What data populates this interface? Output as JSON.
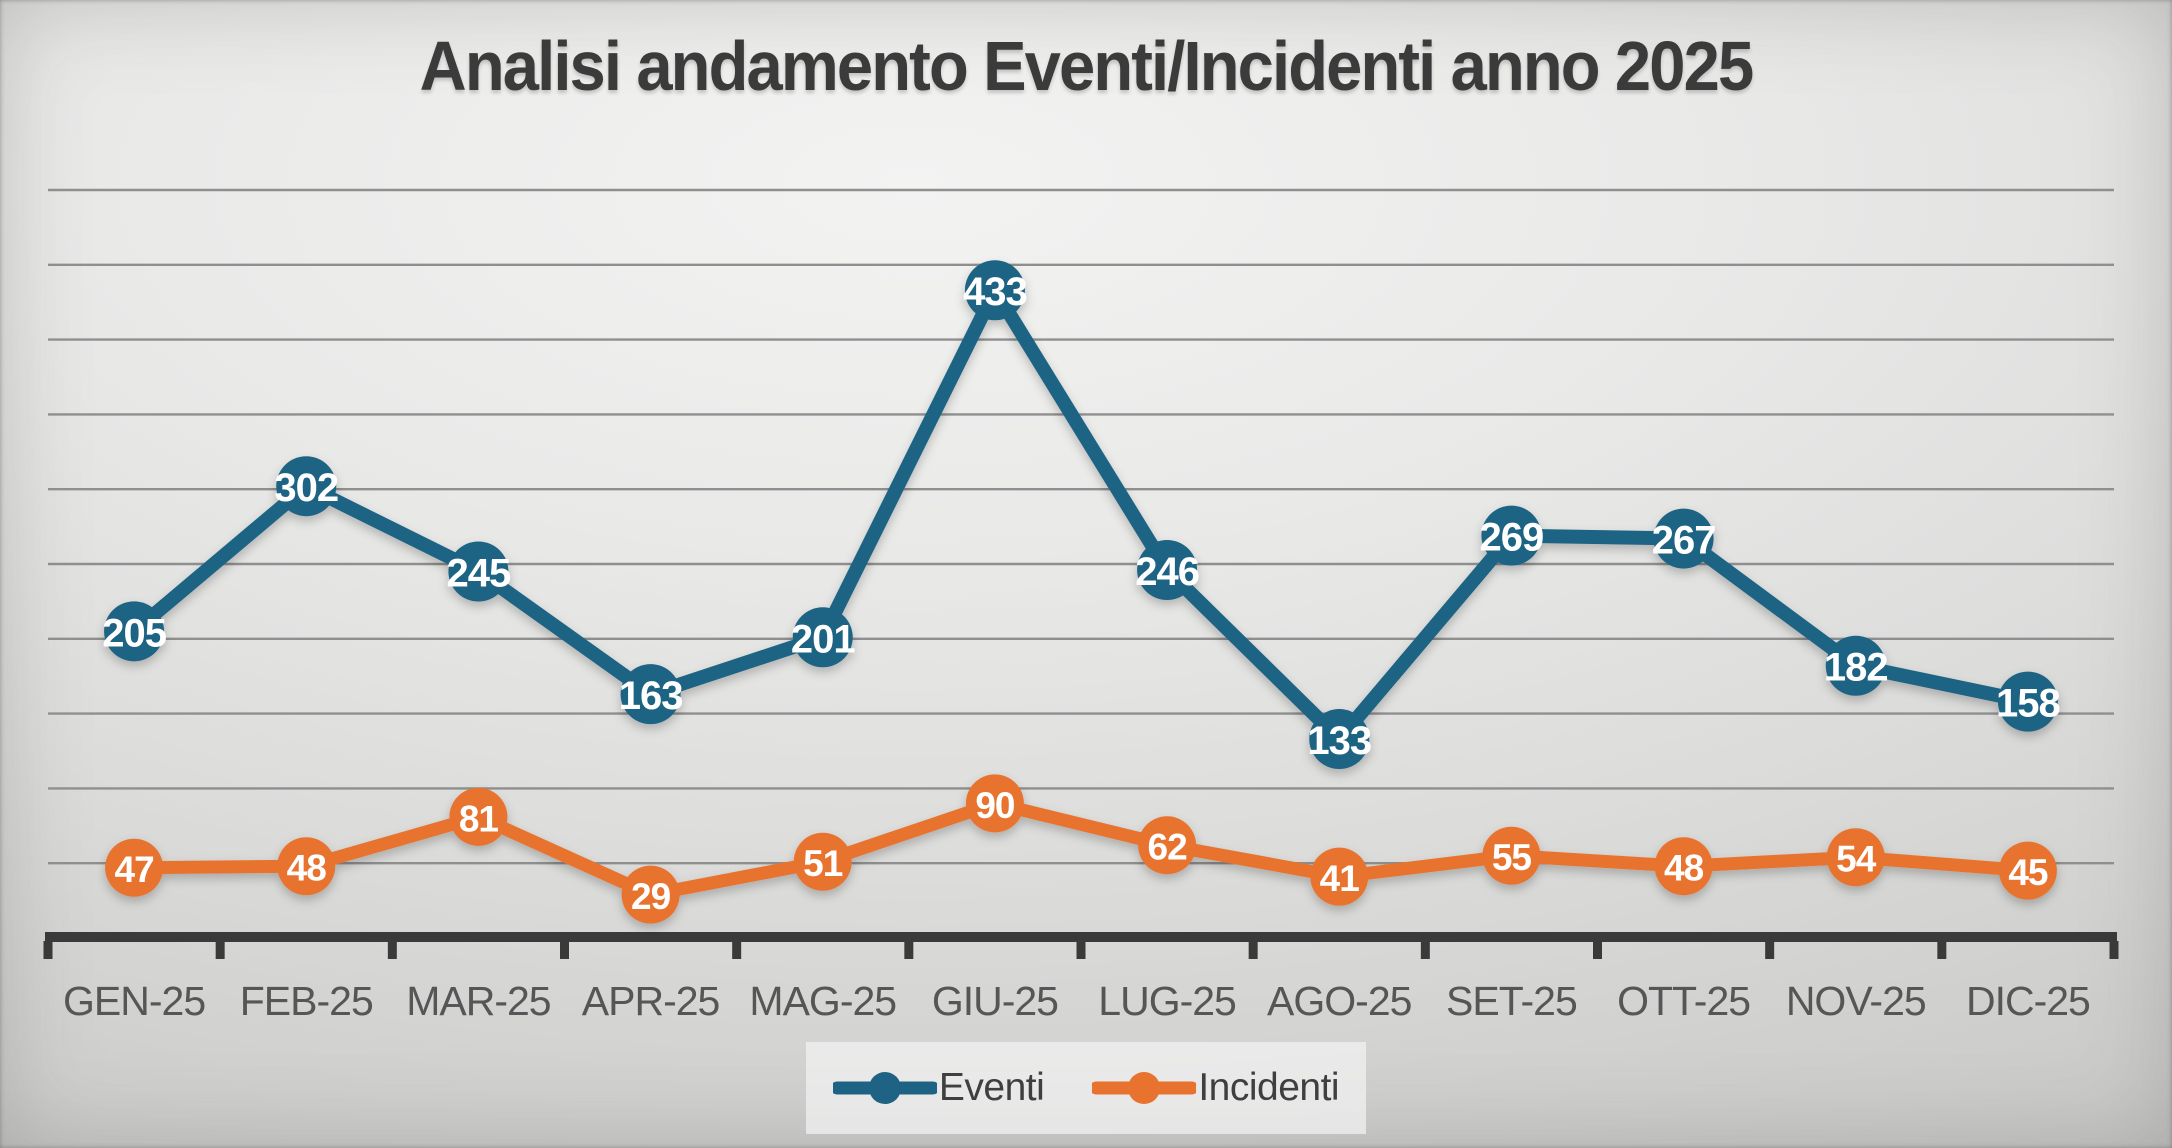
{
  "title": "Analisi andamento Eventi/Incidenti anno 2025",
  "chart_data": {
    "type": "line",
    "categories": [
      "GEN-25",
      "FEB-25",
      "MAR-25",
      "APR-25",
      "MAG-25",
      "GIU-25",
      "LUG-25",
      "AGO-25",
      "SET-25",
      "OTT-25",
      "NOV-25",
      "DIC-25"
    ],
    "series": [
      {
        "name": "Eventi",
        "color": "#1F6384",
        "values": [
          205,
          302,
          245,
          163,
          201,
          433,
          246,
          133,
          269,
          267,
          182,
          158
        ]
      },
      {
        "name": "Incidenti",
        "color": "#E8732E",
        "values": [
          47,
          48,
          81,
          29,
          51,
          90,
          62,
          41,
          55,
          48,
          54,
          45
        ]
      }
    ],
    "ylim": [
      0,
      500
    ],
    "grid_step": 50,
    "grid": "on",
    "data_labels": "inside markers, white bold",
    "legend_position": "bottom-center",
    "xlabel": "",
    "ylabel": "",
    "y_tick_labels_visible": false
  },
  "colors": {
    "gridline": "#8f8f8f",
    "axis": "#3a3a3a",
    "title_text": "#3b3b3b",
    "x_label_text": "#565656",
    "data_label_text": "#ffffff",
    "legend_text": "#3f3f3f"
  }
}
